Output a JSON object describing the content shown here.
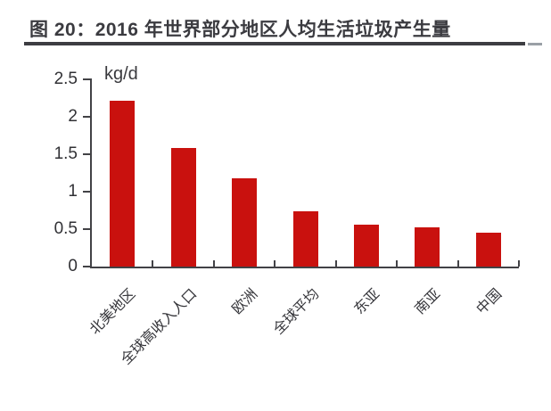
{
  "header": {
    "title": "图 20：2016 年世界部分地区人均生活垃圾产生量"
  },
  "chart_data": {
    "type": "bar",
    "title": "2016 年世界部分地区人均生活垃圾产生量",
    "unit_label": "kg/d",
    "categories": [
      "北美地区",
      "全球高收入人口",
      "欧洲",
      "全球平均",
      "东亚",
      "南亚",
      "中国"
    ],
    "values": [
      2.21,
      1.58,
      1.18,
      0.74,
      0.56,
      0.52,
      0.45
    ],
    "xlabel": "",
    "ylabel": "kg/d",
    "ylim": [
      0,
      2.5
    ],
    "yticks": [
      0,
      0.5,
      1,
      1.5,
      2,
      2.5
    ],
    "ytick_labels": [
      "0",
      "0.5",
      "1",
      "1.5",
      "2",
      "2.5"
    ],
    "grid": false,
    "legend": false,
    "bar_color": "#c9110e",
    "axis_color": "#424246",
    "text_color": "#35353a",
    "title_color": "#3b3b40"
  }
}
